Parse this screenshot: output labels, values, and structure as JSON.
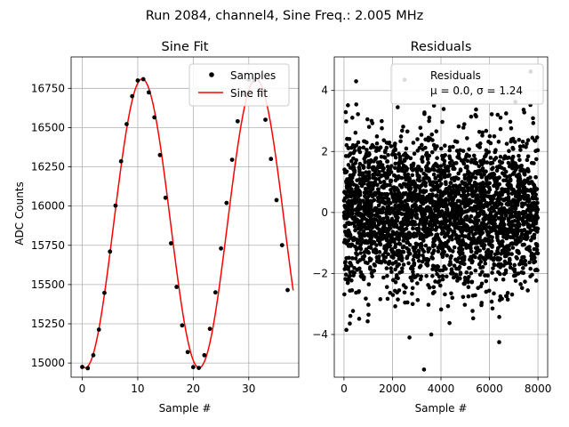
{
  "figure": {
    "suptitle": "Run 2084, channel4, Sine Freq.: 2.005 MHz"
  },
  "chart_data": [
    {
      "type": "line",
      "title": "Sine Fit",
      "xlabel": "Sample #",
      "ylabel": "ADC Counts",
      "xlim": [
        -2,
        39
      ],
      "ylim": [
        14910,
        16950
      ],
      "xticks": [
        0,
        10,
        20,
        30
      ],
      "yticks": [
        15000,
        15250,
        15500,
        15750,
        16000,
        16250,
        16500,
        16750
      ],
      "grid": true,
      "legend_position": "top-right",
      "legend": [
        {
          "label": "Samples",
          "marker": "dot",
          "color": "#000000"
        },
        {
          "label": "Sine fit",
          "marker": "line",
          "color": "#ff0000"
        }
      ],
      "series": [
        {
          "name": "Samples",
          "kind": "scatter",
          "color": "#000000",
          "x": [
            0,
            1,
            2,
            3,
            4,
            5,
            6,
            7,
            8,
            9,
            10,
            11,
            12,
            13,
            14,
            15,
            16,
            17,
            18,
            19,
            20,
            21,
            22,
            23,
            24,
            25,
            26,
            27,
            28,
            29,
            30,
            31,
            32,
            33,
            34,
            35,
            36,
            37
          ],
          "y": [
            14975,
            14967,
            15050,
            15213,
            15447,
            15710,
            16003,
            16285,
            16522,
            16700,
            16800,
            16808,
            16724,
            16565,
            16325,
            16053,
            15763,
            15485,
            15240,
            15070,
            14974,
            14969,
            15050,
            15218,
            15450,
            15730,
            16020,
            16295,
            16540,
            16715,
            16805,
            16800,
            16710,
            16550,
            16300,
            16038,
            15751,
            15465
          ]
        },
        {
          "name": "Sine fit",
          "kind": "line",
          "color": "#ff0000",
          "model": {
            "amplitude": 920,
            "offset": 15890,
            "period": 20.5,
            "peak_x": 10.8,
            "x_start": 0,
            "x_end": 38
          }
        }
      ]
    },
    {
      "type": "scatter",
      "title": "Residuals",
      "xlabel": "Sample #",
      "ylabel": "",
      "xlim": [
        -400,
        8400
      ],
      "ylim": [
        -5.4,
        5.1
      ],
      "xticks": [
        0,
        2000,
        4000,
        6000,
        8000
      ],
      "yticks": [
        -4,
        -2,
        0,
        2,
        4
      ],
      "grid": true,
      "legend_position": "top-right",
      "legend": [
        {
          "label": "Residuals",
          "marker": "none"
        },
        {
          "label": "μ = 0.0, σ = 1.24",
          "marker": "none"
        }
      ],
      "series": [
        {
          "name": "Residuals",
          "color": "#000000",
          "mean": 0.0,
          "std": 1.24,
          "n_points": 8000,
          "x_range": [
            0,
            8000
          ],
          "notable_points": [
            {
              "x": 3300,
              "y": -5.15
            },
            {
              "x": 500,
              "y": 4.3
            },
            {
              "x": 7700,
              "y": 4.62
            },
            {
              "x": 2500,
              "y": 4.35
            },
            {
              "x": 2700,
              "y": -4.1
            },
            {
              "x": 6400,
              "y": -4.25
            },
            {
              "x": 100,
              "y": -3.85
            },
            {
              "x": 3600,
              "y": -4.0
            }
          ]
        }
      ]
    }
  ]
}
